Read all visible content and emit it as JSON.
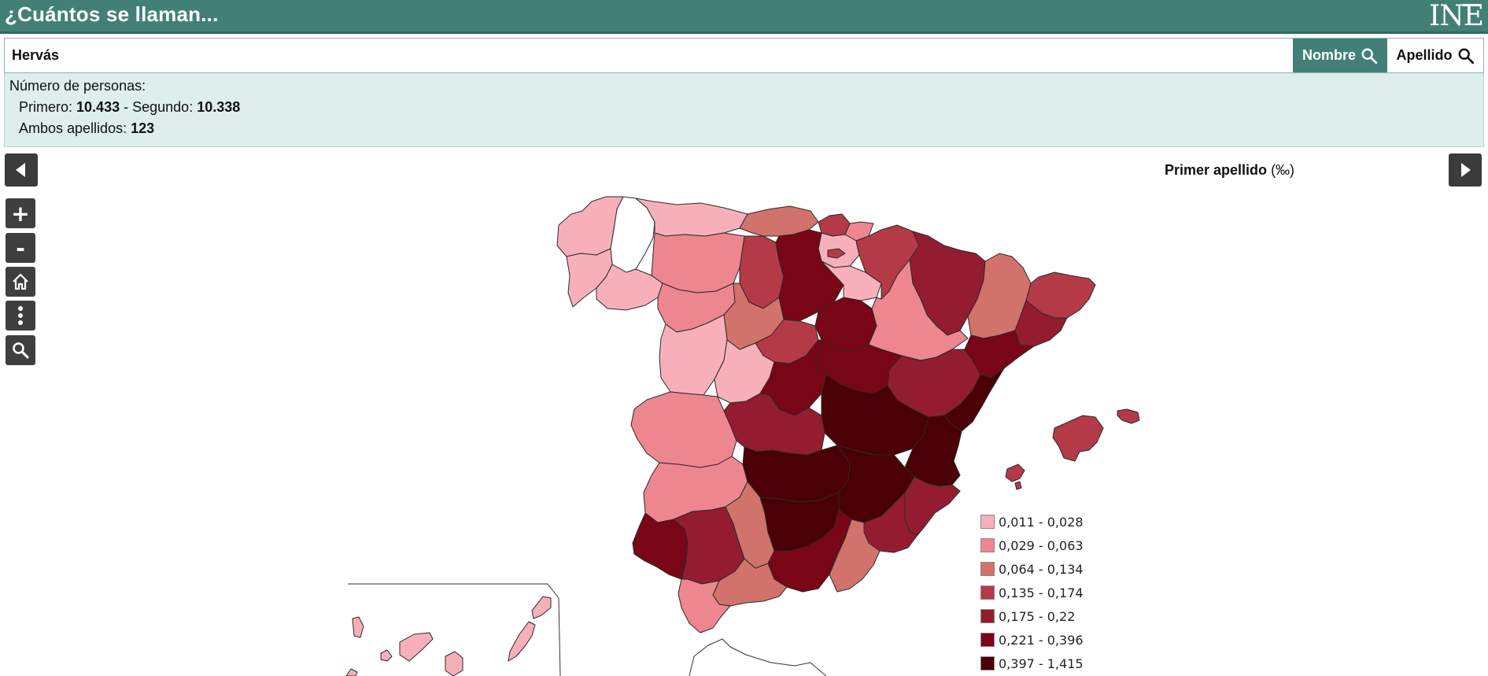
{
  "app": {
    "title": "¿Cuántos se llaman...",
    "logo": "INE"
  },
  "search": {
    "value": "Hervás",
    "nombre_label": "Nombre",
    "apellido_label": "Apellido"
  },
  "info": {
    "heading": "Número de personas:",
    "primero_label": "Primero:",
    "primero_value": "10.433",
    "separator": "-",
    "segundo_label": "Segundo:",
    "segundo_value": "10.338",
    "ambos_label": "Ambos apellidos:",
    "ambos_value": "123"
  },
  "map": {
    "title": "Primer apellido",
    "unit": "(‰)",
    "legend": [
      {
        "label": "0,011 - 0,028",
        "color": "#f7b0ba"
      },
      {
        "label": "0,029 - 0,063",
        "color": "#ee8690"
      },
      {
        "label": "0,064 - 0,134",
        "color": "#d2736b"
      },
      {
        "label": "0,135 - 0,174",
        "color": "#b43a48"
      },
      {
        "label": "0,175 - 0,22",
        "color": "#941c30"
      },
      {
        "label": "0,221 - 0,396",
        "color": "#780616"
      },
      {
        "label": "0,397 - 1,415",
        "color": "#4a0006"
      }
    ]
  },
  "controls": {
    "prev_icon": "triangle-left-icon",
    "next_icon": "triangle-right-icon",
    "zoom_in": "+",
    "zoom_out": "-",
    "home_icon": "home-icon",
    "more_icon": "more-vertical-icon",
    "search_icon": "search-icon"
  }
}
